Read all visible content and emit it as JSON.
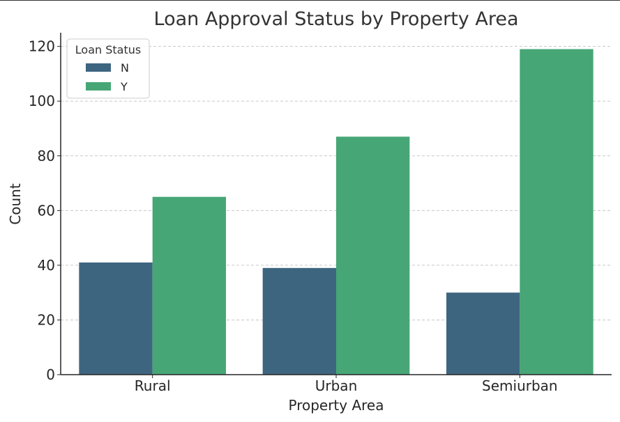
{
  "chart_data": {
    "type": "bar",
    "title": "Loan Approval Status by Property Area",
    "xlabel": "Property Area",
    "ylabel": "Count",
    "categories": [
      "Rural",
      "Urban",
      "Semiurban"
    ],
    "series": [
      {
        "name": "N",
        "values": [
          41,
          39,
          30
        ],
        "color": "#3e6580"
      },
      {
        "name": "Y",
        "values": [
          65,
          87,
          119
        ],
        "color": "#46a676"
      }
    ],
    "legend": {
      "title": "Loan Status",
      "placement": "top-left"
    },
    "ylim": [
      0,
      125
    ],
    "yticks": [
      0,
      20,
      40,
      60,
      80,
      100,
      120
    ],
    "grid": {
      "y": true,
      "x": false,
      "color": "#c8c8c8"
    }
  }
}
